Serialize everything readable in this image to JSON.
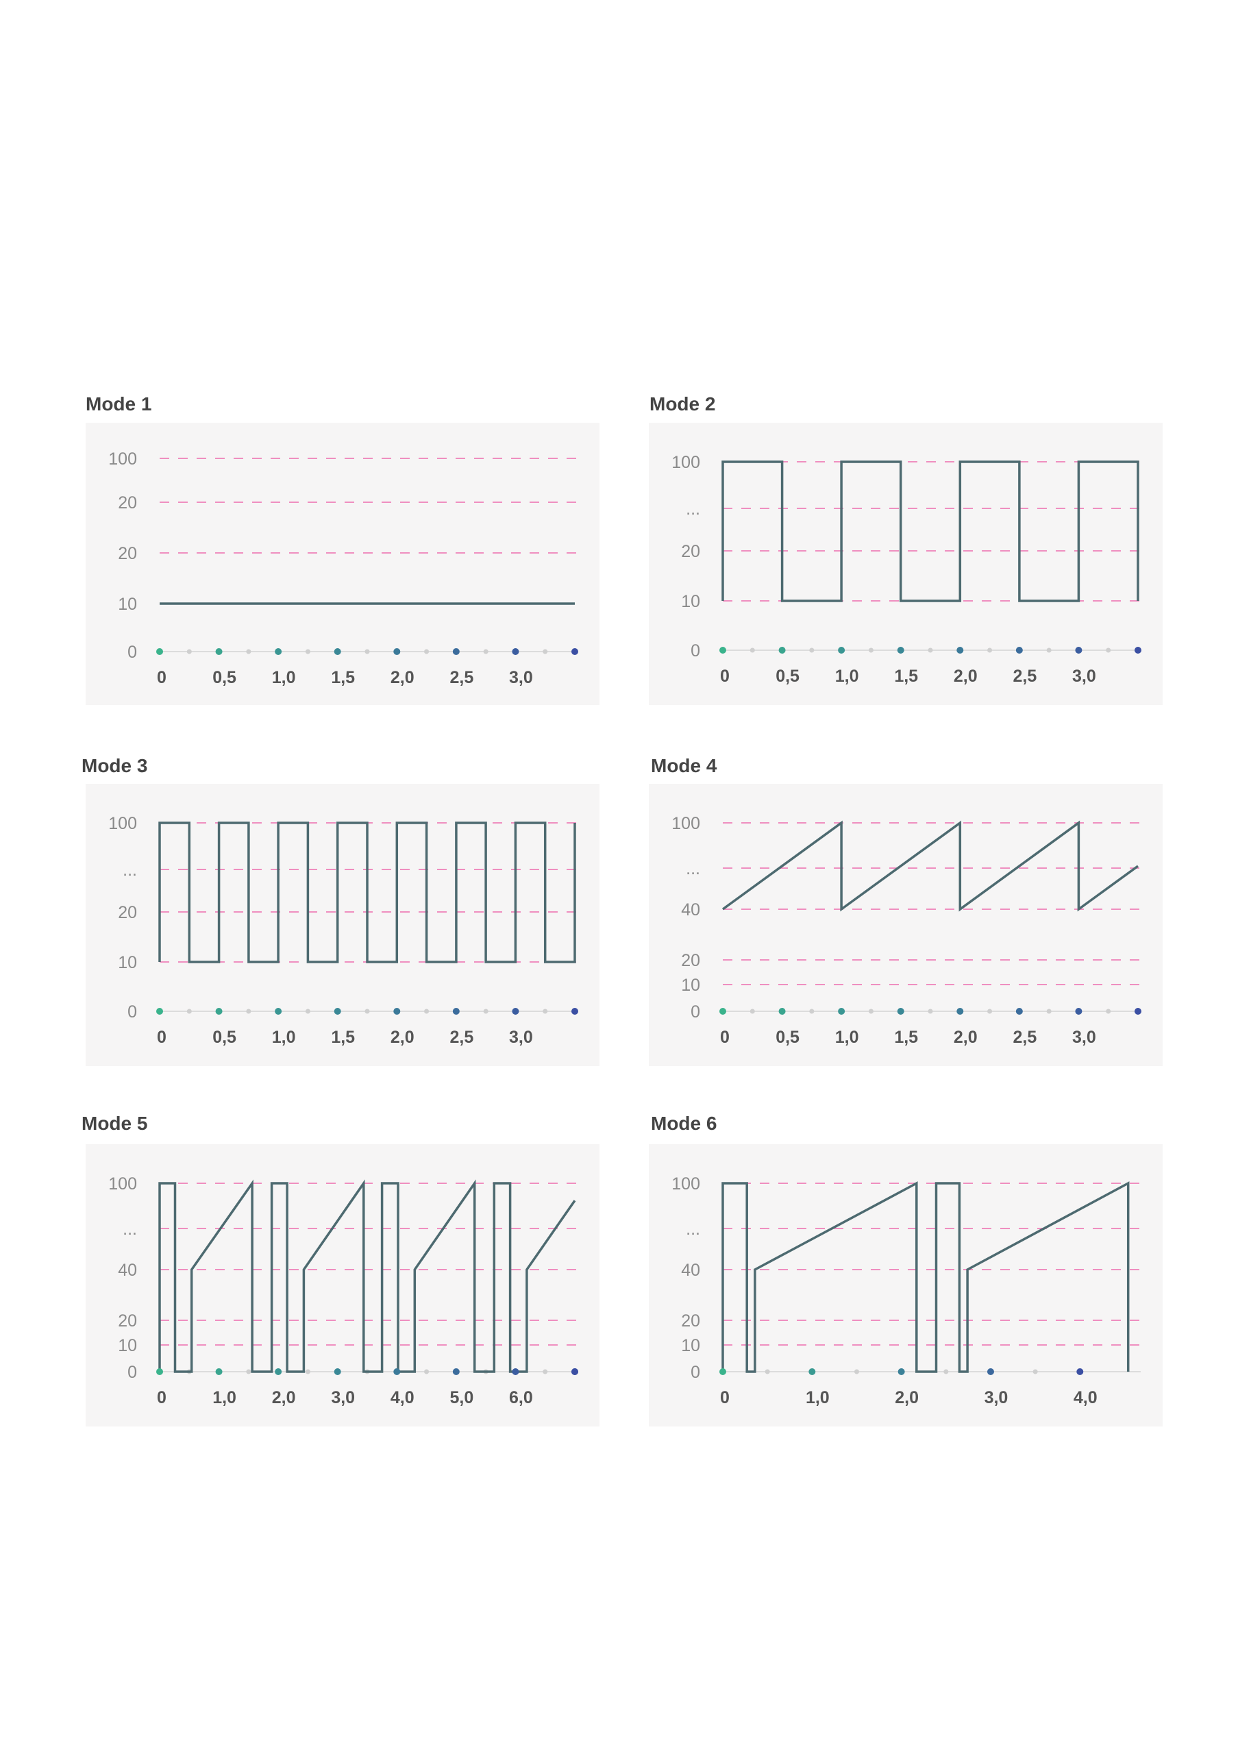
{
  "colors": {
    "line": "#4d6a70",
    "grid": "#ef8fc0",
    "axis": "#dcdcdc",
    "dot_start": "#3ab38c",
    "dot_end": "#3b4fa3",
    "minor_dot": "#cfcfcf",
    "panel_bg": "#f6f5f5"
  },
  "chart_data": [
    {
      "type": "line",
      "title": "Mode 1",
      "xlim": [
        0,
        3.5
      ],
      "x_ticks": [
        "0",
        "0,5",
        "1,0",
        "1,5",
        "2,0",
        "2,5",
        "3,0"
      ],
      "x_tick_values": [
        0,
        0.5,
        1.0,
        1.5,
        2.0,
        2.5,
        3.0
      ],
      "y_ticks": [
        "0",
        "10",
        "20",
        "20",
        "100"
      ],
      "grid_lines": [
        "20",
        "20",
        "100"
      ],
      "series": [
        {
          "points": [
            [
              0,
              10
            ],
            [
              3.5,
              10
            ]
          ]
        }
      ]
    },
    {
      "type": "line",
      "title": "Mode 2",
      "xlim": [
        0,
        3.5
      ],
      "x_ticks": [
        "0",
        "0,5",
        "1,0",
        "1,5",
        "2,0",
        "2,5",
        "3,0"
      ],
      "x_tick_values": [
        0,
        0.5,
        1.0,
        1.5,
        2.0,
        2.5,
        3.0
      ],
      "y_ticks": [
        "0",
        "10",
        "20",
        "...",
        "100"
      ],
      "grid_lines": [
        "10",
        "20",
        "...",
        "100"
      ],
      "series": [
        {
          "points": [
            [
              0,
              10
            ],
            [
              0,
              100
            ],
            [
              0.5,
              100
            ],
            [
              0.5,
              10
            ],
            [
              1.0,
              10
            ],
            [
              1.0,
              100
            ],
            [
              1.5,
              100
            ],
            [
              1.5,
              10
            ],
            [
              2.0,
              10
            ],
            [
              2.0,
              100
            ],
            [
              2.5,
              100
            ],
            [
              2.5,
              10
            ],
            [
              3.0,
              10
            ],
            [
              3.0,
              100
            ],
            [
              3.5,
              100
            ],
            [
              3.5,
              10
            ]
          ]
        }
      ]
    },
    {
      "type": "line",
      "title": "Mode 3",
      "xlim": [
        0,
        3.5
      ],
      "x_ticks": [
        "0",
        "0,5",
        "1,0",
        "1,5",
        "2,0",
        "2,5",
        "3,0"
      ],
      "x_tick_values": [
        0,
        0.5,
        1.0,
        1.5,
        2.0,
        2.5,
        3.0
      ],
      "y_ticks": [
        "0",
        "10",
        "20",
        "...",
        "100"
      ],
      "grid_lines": [
        "10",
        "20",
        "...",
        "100"
      ],
      "series": [
        {
          "points": [
            [
              0,
              10
            ],
            [
              0,
              100
            ],
            [
              0.25,
              100
            ],
            [
              0.25,
              10
            ],
            [
              0.5,
              10
            ],
            [
              0.5,
              100
            ],
            [
              0.75,
              100
            ],
            [
              0.75,
              10
            ],
            [
              1.0,
              10
            ],
            [
              1.0,
              100
            ],
            [
              1.25,
              100
            ],
            [
              1.25,
              10
            ],
            [
              1.5,
              10
            ],
            [
              1.5,
              100
            ],
            [
              1.75,
              100
            ],
            [
              1.75,
              10
            ],
            [
              2.0,
              10
            ],
            [
              2.0,
              100
            ],
            [
              2.25,
              100
            ],
            [
              2.25,
              10
            ],
            [
              2.5,
              10
            ],
            [
              2.5,
              100
            ],
            [
              2.75,
              100
            ],
            [
              2.75,
              10
            ],
            [
              3.0,
              10
            ],
            [
              3.0,
              100
            ],
            [
              3.25,
              100
            ],
            [
              3.25,
              10
            ],
            [
              3.5,
              10
            ],
            [
              3.5,
              100
            ]
          ]
        }
      ]
    },
    {
      "type": "line",
      "title": "Mode 4",
      "xlim": [
        0,
        3.5
      ],
      "x_ticks": [
        "0",
        "0,5",
        "1,0",
        "1,5",
        "2,0",
        "2,5",
        "3,0"
      ],
      "x_tick_values": [
        0,
        0.5,
        1.0,
        1.5,
        2.0,
        2.5,
        3.0
      ],
      "y_ticks": [
        "0",
        "10",
        "20",
        "40",
        "...",
        "100"
      ],
      "grid_lines": [
        "10",
        "20",
        "40",
        "...",
        "100"
      ],
      "series": [
        {
          "points": [
            [
              0,
              40
            ],
            [
              1.0,
              100
            ],
            [
              1.0,
              40
            ],
            [
              2.0,
              100
            ],
            [
              2.0,
              40
            ],
            [
              3.0,
              100
            ],
            [
              3.0,
              40
            ],
            [
              3.5,
              70
            ]
          ]
        }
      ]
    },
    {
      "type": "line",
      "title": "Mode 5",
      "xlim": [
        0,
        7
      ],
      "x_ticks": [
        "0",
        "1,0",
        "2,0",
        "3,0",
        "4,0",
        "5,0",
        "6,0"
      ],
      "x_tick_values": [
        0,
        1,
        2,
        3,
        4,
        5,
        6
      ],
      "y_ticks": [
        "0",
        "10",
        "20",
        "40",
        "...",
        "100"
      ],
      "grid_lines": [
        "10",
        "20",
        "40",
        "...",
        "100"
      ],
      "series": [
        {
          "points": [
            [
              0,
              0
            ],
            [
              0,
              100
            ],
            [
              0.26,
              100
            ],
            [
              0.26,
              0
            ],
            [
              0.54,
              0
            ],
            [
              0.54,
              40
            ],
            [
              1.56,
              100
            ],
            [
              1.56,
              0
            ],
            [
              1.89,
              0
            ],
            [
              1.89,
              100
            ],
            [
              2.15,
              100
            ],
            [
              2.15,
              0
            ],
            [
              2.43,
              0
            ],
            [
              2.43,
              40
            ],
            [
              3.44,
              100
            ],
            [
              3.44,
              0
            ],
            [
              3.75,
              0
            ],
            [
              3.75,
              100
            ],
            [
              4.02,
              100
            ],
            [
              4.02,
              0
            ],
            [
              4.3,
              0
            ],
            [
              4.3,
              40
            ],
            [
              5.31,
              100
            ],
            [
              5.31,
              0
            ],
            [
              5.64,
              0
            ],
            [
              5.64,
              100
            ],
            [
              5.91,
              100
            ],
            [
              5.91,
              0
            ],
            [
              6.19,
              0
            ],
            [
              6.19,
              40
            ],
            [
              7.0,
              88
            ]
          ]
        }
      ]
    },
    {
      "type": "line",
      "title": "Mode 6",
      "xlim": [
        0,
        4.65
      ],
      "x_ticks": [
        "0",
        "1,0",
        "2,0",
        "3,0",
        "4,0"
      ],
      "x_tick_values": [
        0,
        1,
        2,
        3,
        4
      ],
      "y_ticks": [
        "0",
        "10",
        "20",
        "40",
        "...",
        "100"
      ],
      "grid_lines": [
        "10",
        "20",
        "40",
        "...",
        "100"
      ],
      "series": [
        {
          "points": [
            [
              0,
              0
            ],
            [
              0,
              100
            ],
            [
              0.27,
              100
            ],
            [
              0.27,
              0
            ],
            [
              0.36,
              0
            ],
            [
              0.36,
              40
            ],
            [
              2.17,
              100
            ],
            [
              2.17,
              0
            ],
            [
              2.39,
              0
            ],
            [
              2.39,
              100
            ],
            [
              2.65,
              100
            ],
            [
              2.65,
              0
            ],
            [
              2.74,
              0
            ],
            [
              2.74,
              40
            ],
            [
              4.54,
              100
            ],
            [
              4.54,
              0
            ]
          ]
        }
      ]
    }
  ]
}
